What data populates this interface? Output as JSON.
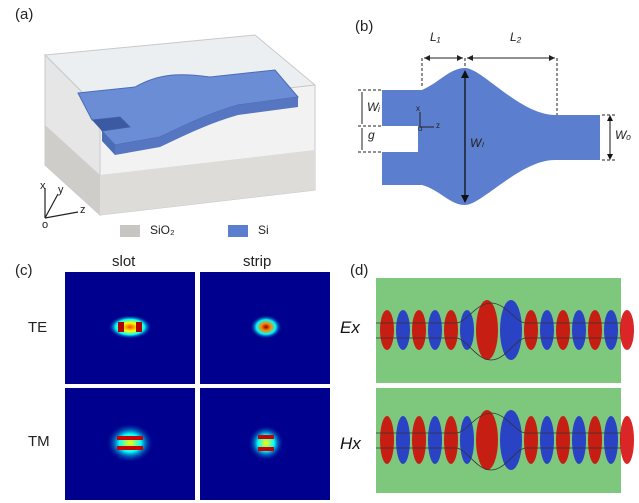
{
  "panels": {
    "a": {
      "label": "(a)",
      "axes": {
        "x": "x",
        "y": "y",
        "z": "z",
        "o": "o"
      },
      "legend": [
        {
          "name": "SiO₂",
          "color": "#c8c6c3"
        },
        {
          "name": "Si",
          "color": "#5b7fce"
        }
      ]
    },
    "b": {
      "label": "(b)",
      "dims": {
        "L1": "L₁",
        "L2": "L₂",
        "Wl_left": "Wᵢ",
        "g": "g",
        "Wl_center": "Wₗ",
        "Wo": "Wₒ"
      },
      "axes": {
        "x": "x",
        "z": "z",
        "o": "o"
      }
    },
    "c": {
      "label": "(c)",
      "columns": [
        "slot",
        "strip"
      ],
      "rows": [
        "TE",
        "TM"
      ]
    },
    "d": {
      "label": "(d)",
      "fields": [
        "Ex",
        "Hx"
      ]
    }
  },
  "colors": {
    "si": "#5b7fce",
    "bg_field": "#00008f",
    "neutral_field": "#7ec87e"
  }
}
